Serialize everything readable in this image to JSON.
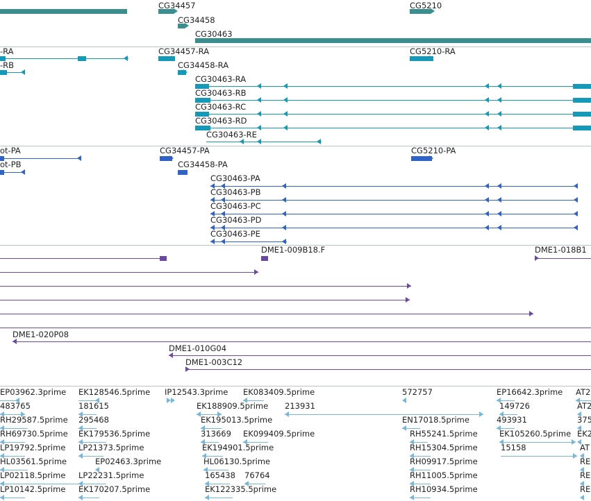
{
  "colors": {
    "gene": "#3a8e8e",
    "transcript": "#1599b8",
    "protein": "#2f63c7",
    "clone": "#6a49a6",
    "est": "#76b7dd",
    "divider": "#b9c3cc",
    "text": "#222222"
  },
  "tracks": {
    "genes": {
      "features": [
        {
          "label": "",
          "shape": "bar"
        },
        {
          "label": "CG34457",
          "shape": "bar-arrow"
        },
        {
          "label": "CG34458",
          "shape": "bar-arrow"
        },
        {
          "label": "CG30463",
          "shape": "bar"
        },
        {
          "label": "CG5210",
          "shape": "bar-arrow"
        }
      ]
    },
    "transcripts": {
      "features": [
        {
          "label": "-RA"
        },
        {
          "label": "-RB"
        },
        {
          "label": "CG34457-RA"
        },
        {
          "label": "CG34458-RA"
        },
        {
          "label": "CG30463-RA"
        },
        {
          "label": "CG30463-RB"
        },
        {
          "label": "CG30463-RC"
        },
        {
          "label": "CG30463-RD"
        },
        {
          "label": "CG30463-RE"
        },
        {
          "label": "CG5210-RA"
        }
      ]
    },
    "proteins": {
      "features": [
        {
          "label": "ot-PA"
        },
        {
          "label": "ot-PB"
        },
        {
          "label": "CG34457-PA"
        },
        {
          "label": "CG34458-PA"
        },
        {
          "label": "CG30463-PA"
        },
        {
          "label": "CG30463-PB"
        },
        {
          "label": "CG30463-PC"
        },
        {
          "label": "CG30463-PD"
        },
        {
          "label": "CG30463-PE"
        },
        {
          "label": "CG5210-PA"
        }
      ]
    },
    "clones": {
      "features": [
        {
          "label": ""
        },
        {
          "label": "DME1-009B18.F"
        },
        {
          "label": "DME1-018B1"
        },
        {
          "label": ""
        },
        {
          "label": ""
        },
        {
          "label": ""
        },
        {
          "label": ""
        },
        {
          "label": ""
        },
        {
          "label": "DME1-020P08"
        },
        {
          "label": "DME1-010G04"
        },
        {
          "label": "DME1-003C12"
        }
      ]
    },
    "ests": {
      "features": [
        {
          "label": "EP03962.3prime"
        },
        {
          "label": "EK128546.5prime"
        },
        {
          "label": "IP12543.3prime"
        },
        {
          "label": "EK083409.5prime"
        },
        {
          "label": "572757"
        },
        {
          "label": "EP16642.3prime"
        },
        {
          "label": "AT2"
        },
        {
          "label": "483765"
        },
        {
          "label": "181615"
        },
        {
          "label": "EK188909.5prime"
        },
        {
          "label": "213931"
        },
        {
          "label": "149726"
        },
        {
          "label": "AT2"
        },
        {
          "label": "RH29587.5prime"
        },
        {
          "label": "295468"
        },
        {
          "label": "EK195013.5prime"
        },
        {
          "label": "EN17018.5prime"
        },
        {
          "label": "493931"
        },
        {
          "label": "375"
        },
        {
          "label": "RH69730.5prime"
        },
        {
          "label": "EK179536.5prime"
        },
        {
          "label": "313669"
        },
        {
          "label": "EK099409.5prime"
        },
        {
          "label": "RH55241.5prime"
        },
        {
          "label": "EK105260.5prime"
        },
        {
          "label": "EK2"
        },
        {
          "label": "LP19792.5prime"
        },
        {
          "label": "LP21373.5prime"
        },
        {
          "label": "EK194901.5prime"
        },
        {
          "label": "RH15304.5prime"
        },
        {
          "label": "15158"
        },
        {
          "label": "AT"
        },
        {
          "label": "HL03561.5prime"
        },
        {
          "label": "EP02463.3prime"
        },
        {
          "label": "HL06130.5prime"
        },
        {
          "label": "RH09917.5prime"
        },
        {
          "label": "RE"
        },
        {
          "label": "LP02118.5prime"
        },
        {
          "label": "LP22231.5prime"
        },
        {
          "label": "165438"
        },
        {
          "label": "76764"
        },
        {
          "label": "RH11005.5prime"
        },
        {
          "label": "RE"
        },
        {
          "label": "LP10142.5prime"
        },
        {
          "label": "EK170207.5prime"
        },
        {
          "label": "EK122335.5prime"
        },
        {
          "label": "RH10934.5prime"
        },
        {
          "label": "RE"
        }
      ]
    }
  }
}
